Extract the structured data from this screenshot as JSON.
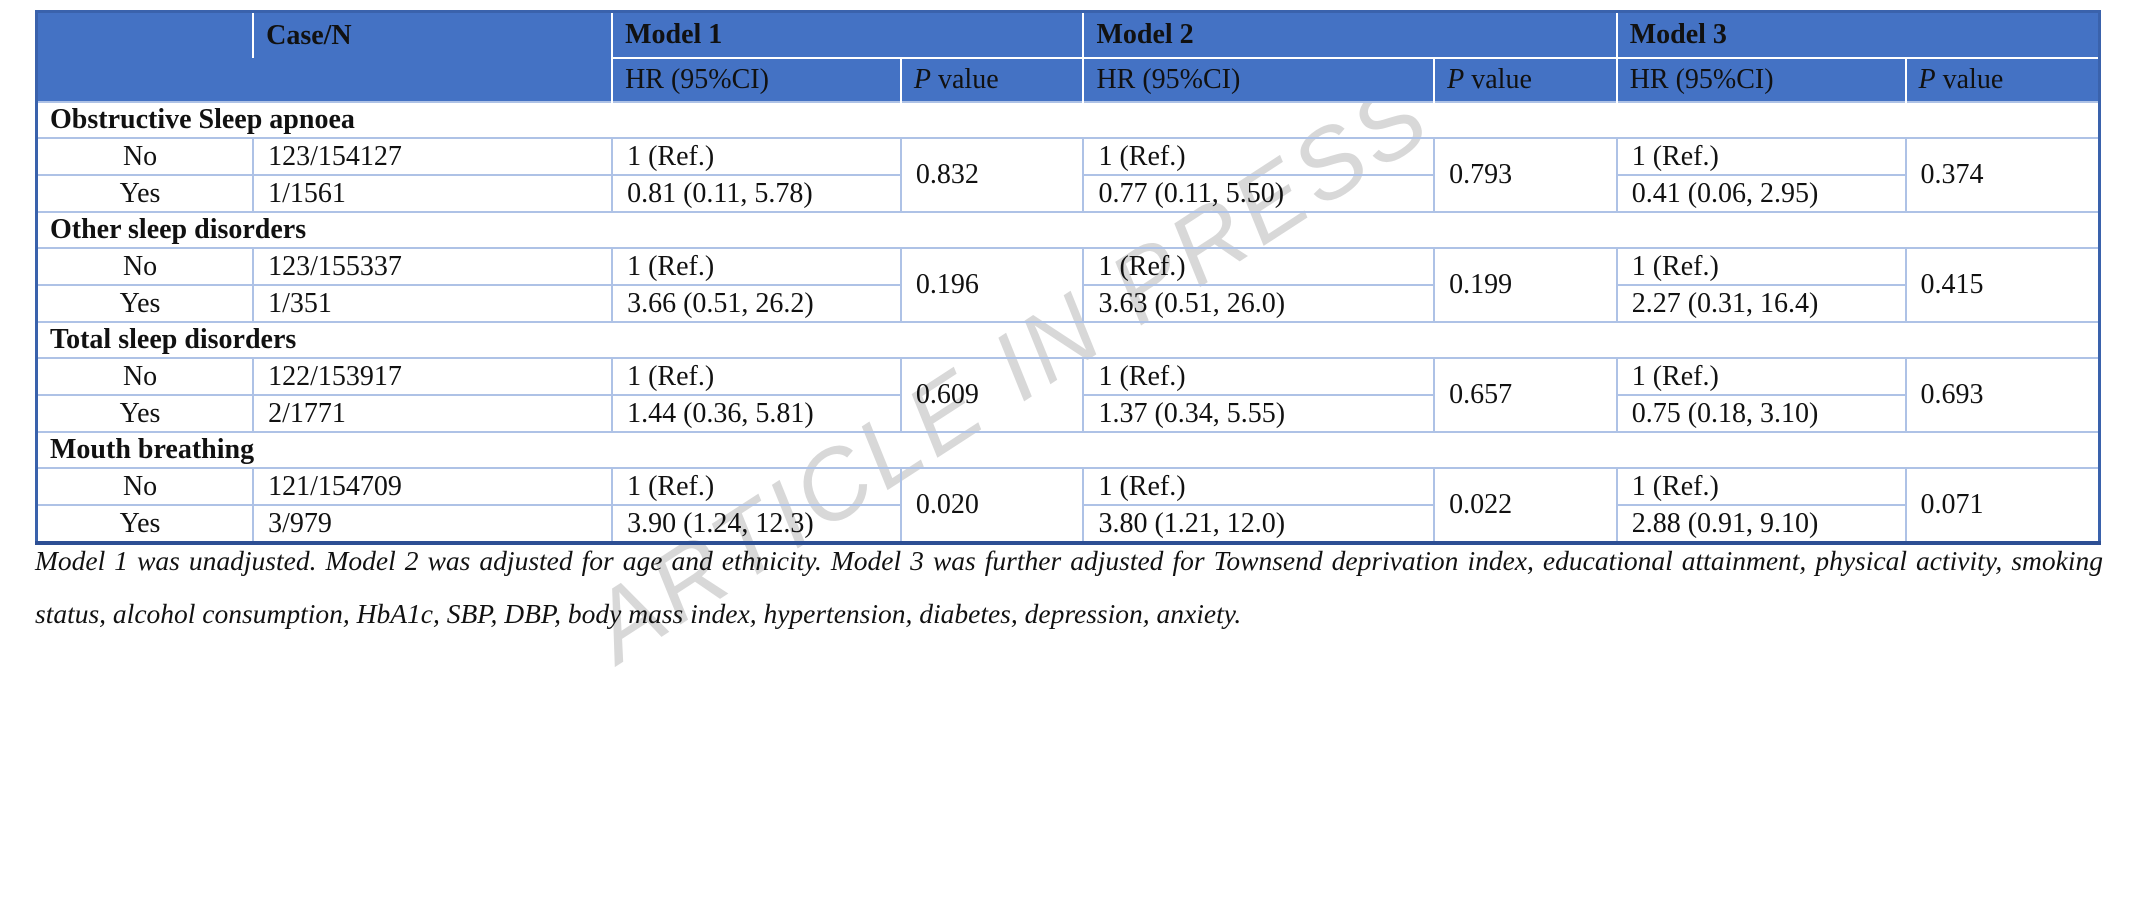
{
  "watermark": {
    "text": "ARTICLE IN PRESS",
    "color": "#d8d8d8"
  },
  "colors": {
    "header_fill": "#4472c4",
    "inner_border": "#aec2e6",
    "outer_border": "#3a62ac",
    "bottom_border": "#2d4f94"
  },
  "table": {
    "header": {
      "case_n": "Case/N",
      "models": [
        "Model 1",
        "Model 2",
        "Model 3"
      ],
      "hr_label": "HR (95%CI)",
      "p_italic": "P",
      "p_rest": "value"
    },
    "sections": [
      {
        "title": "Obstructive Sleep apnoea",
        "rows": [
          {
            "label": "No",
            "case_n": "123/154127",
            "m1_hr": "1 (Ref.)",
            "m2_hr": "1 (Ref.)",
            "m3_hr": "1 (Ref.)"
          },
          {
            "label": "Yes",
            "case_n": "1/1561",
            "m1_hr": "0.81 (0.11, 5.78)",
            "m2_hr": "0.77 (0.11, 5.50)",
            "m3_hr": "0.41 (0.06, 2.95)"
          }
        ],
        "p_values": {
          "m1": "0.832",
          "m2": "0.793",
          "m3": "0.374"
        }
      },
      {
        "title": "Other sleep disorders",
        "rows": [
          {
            "label": "No",
            "case_n": "123/155337",
            "m1_hr": "1 (Ref.)",
            "m2_hr": "1 (Ref.)",
            "m3_hr": "1 (Ref.)"
          },
          {
            "label": "Yes",
            "case_n": "1/351",
            "m1_hr": "3.66 (0.51, 26.2)",
            "m2_hr": "3.63 (0.51, 26.0)",
            "m3_hr": "2.27 (0.31, 16.4)"
          }
        ],
        "p_values": {
          "m1": "0.196",
          "m2": "0.199",
          "m3": "0.415"
        }
      },
      {
        "title": "Total sleep disorders",
        "rows": [
          {
            "label": "No",
            "case_n": "122/153917",
            "m1_hr": "1 (Ref.)",
            "m2_hr": "1 (Ref.)",
            "m3_hr": "1 (Ref.)"
          },
          {
            "label": "Yes",
            "case_n": "2/1771",
            "m1_hr": "1.44 (0.36, 5.81)",
            "m2_hr": "1.37 (0.34, 5.55)",
            "m3_hr": "0.75 (0.18, 3.10)"
          }
        ],
        "p_values": {
          "m1": "0.609",
          "m2": "0.657",
          "m3": "0.693"
        }
      },
      {
        "title": "Mouth breathing",
        "rows": [
          {
            "label": "No",
            "case_n": "121/154709",
            "m1_hr": "1 (Ref.)",
            "m2_hr": "1 (Ref.)",
            "m3_hr": "1 (Ref.)"
          },
          {
            "label": "Yes",
            "case_n": "3/979",
            "m1_hr": "3.90 (1.24, 12.3)",
            "m2_hr": "3.80 (1.21, 12.0)",
            "m3_hr": "2.88 (0.91, 9.10)"
          }
        ],
        "p_values": {
          "m1": "0.020",
          "m2": "0.022",
          "m3": "0.071"
        }
      }
    ]
  },
  "footnote": "Model 1 was unadjusted. Model 2 was adjusted for age and ethnicity. Model 3 was further adjusted for Townsend deprivation index, educational attainment, physical activity, smoking status, alcohol consumption, HbA1c, SBP, DBP, body mass index, hypertension, diabetes, depression, anxiety."
}
